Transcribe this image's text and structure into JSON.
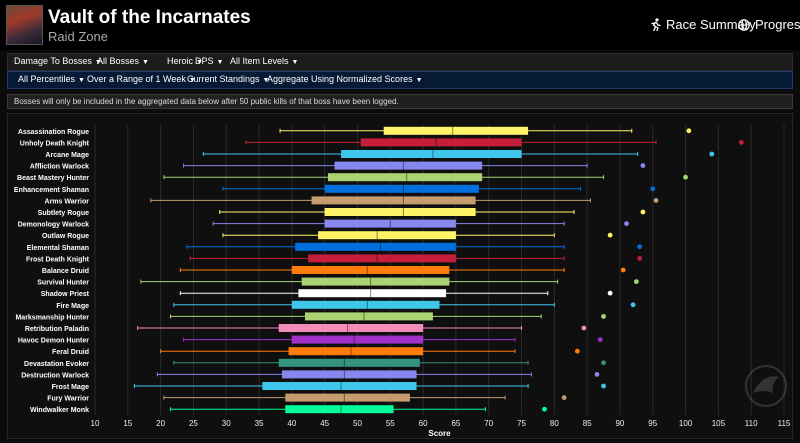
{
  "header": {
    "title": "Vault of the Incarnates",
    "subtitle": "Raid Zone",
    "links": [
      {
        "label": "Race Summary",
        "icon": "running-person-icon"
      },
      {
        "label": "Progress",
        "icon": "globe-icon"
      }
    ]
  },
  "menu1": [
    {
      "label": "Damage To Bosses"
    },
    {
      "label": "All Bosses"
    },
    {
      "label": "Heroic"
    },
    {
      "label": "DPS"
    },
    {
      "label": "All Item Levels"
    }
  ],
  "menu2": [
    {
      "label": "All Percentiles"
    },
    {
      "label": "Over a Range of 1 Week"
    },
    {
      "label": "Current Standings"
    },
    {
      "label": "Aggregate Using Normalized Scores"
    }
  ],
  "notice": "Bosses will only be included in the aggregated data below after 50 public kills of that boss have been logged.",
  "chart_data": {
    "type": "boxplot",
    "xlabel": "Score",
    "xlim": [
      10,
      115
    ],
    "xticks": [
      10,
      15,
      20,
      25,
      30,
      35,
      40,
      45,
      50,
      55,
      60,
      65,
      70,
      75,
      80,
      85,
      90,
      95,
      100,
      105,
      110,
      115
    ],
    "grid": true,
    "items": [
      {
        "name": "Assassination Rogue",
        "color": "#fff468",
        "min": 38.2,
        "q1": 54.0,
        "median": 64.5,
        "q3": 76.0,
        "max": 91.8,
        "outlier": 100.5
      },
      {
        "name": "Unholy Death Knight",
        "color": "#c41e3a",
        "min": 33.0,
        "q1": 50.5,
        "median": 62.0,
        "q3": 75.0,
        "max": 95.5,
        "outlier": 108.5
      },
      {
        "name": "Arcane Mage",
        "color": "#3fc7eb",
        "min": 26.5,
        "q1": 47.5,
        "median": 61.5,
        "q3": 75.0,
        "max": 92.7,
        "outlier": 104.0
      },
      {
        "name": "Affliction Warlock",
        "color": "#8788ee",
        "min": 23.5,
        "q1": 46.5,
        "median": 57.0,
        "q3": 69.0,
        "max": 85.0,
        "outlier": 93.5
      },
      {
        "name": "Beast Mastery Hunter",
        "color": "#aad372",
        "min": 20.5,
        "q1": 45.5,
        "median": 57.5,
        "q3": 69.0,
        "max": 87.5,
        "outlier": 100.0
      },
      {
        "name": "Enhancement Shaman",
        "color": "#0070dd",
        "min": 29.5,
        "q1": 45.0,
        "median": 57.0,
        "q3": 68.5,
        "max": 84.0,
        "outlier": 95.0
      },
      {
        "name": "Arms Warrior",
        "color": "#c69b6d",
        "min": 18.5,
        "q1": 43.0,
        "median": 57.0,
        "q3": 68.0,
        "max": 85.5,
        "outlier": 95.5
      },
      {
        "name": "Subtlety Rogue",
        "color": "#fff468",
        "min": 29.0,
        "q1": 45.0,
        "median": 57.0,
        "q3": 68.0,
        "max": 83.0,
        "outlier": 93.5
      },
      {
        "name": "Demonology Warlock",
        "color": "#8788ee",
        "min": 28.0,
        "q1": 45.0,
        "median": 55.0,
        "q3": 65.0,
        "max": 81.5,
        "outlier": 91.0
      },
      {
        "name": "Outlaw Rogue",
        "color": "#fff468",
        "min": 29.5,
        "q1": 44.0,
        "median": 53.0,
        "q3": 65.0,
        "max": 80.0,
        "outlier": 88.5
      },
      {
        "name": "Elemental Shaman",
        "color": "#0070dd",
        "min": 24.0,
        "q1": 40.5,
        "median": 53.5,
        "q3": 65.0,
        "max": 81.5,
        "outlier": 93.0
      },
      {
        "name": "Frost Death Knight",
        "color": "#c41e3a",
        "min": 24.5,
        "q1": 42.5,
        "median": 53.0,
        "q3": 65.0,
        "max": 81.5,
        "outlier": 93.0
      },
      {
        "name": "Balance Druid",
        "color": "#ff7c0a",
        "min": 23.0,
        "q1": 40.0,
        "median": 51.5,
        "q3": 64.0,
        "max": 81.5,
        "outlier": 90.5
      },
      {
        "name": "Survival Hunter",
        "color": "#aad372",
        "min": 17.0,
        "q1": 41.5,
        "median": 52.0,
        "q3": 64.0,
        "max": 80.5,
        "outlier": 92.5
      },
      {
        "name": "Shadow Priest",
        "color": "#ffffff",
        "min": 23.0,
        "q1": 41.0,
        "median": 52.0,
        "q3": 63.5,
        "max": 79.0,
        "outlier": 88.5
      },
      {
        "name": "Fire Mage",
        "color": "#3fc7eb",
        "min": 22.0,
        "q1": 40.0,
        "median": 51.5,
        "q3": 62.5,
        "max": 80.0,
        "outlier": 92.0
      },
      {
        "name": "Marksmanship Hunter",
        "color": "#aad372",
        "min": 21.5,
        "q1": 42.0,
        "median": 51.0,
        "q3": 61.5,
        "max": 78.0,
        "outlier": 87.5
      },
      {
        "name": "Retribution Paladin",
        "color": "#f48cba",
        "min": 16.5,
        "q1": 38.0,
        "median": 48.5,
        "q3": 60.0,
        "max": 75.0,
        "outlier": 84.5
      },
      {
        "name": "Havoc Demon Hunter",
        "color": "#a330c9",
        "min": 23.5,
        "q1": 40.0,
        "median": 49.5,
        "q3": 60.0,
        "max": 74.0,
        "outlier": 87.0
      },
      {
        "name": "Feral Druid",
        "color": "#ff7c0a",
        "min": 20.0,
        "q1": 39.5,
        "median": 49.0,
        "q3": 60.0,
        "max": 74.0,
        "outlier": 83.5
      },
      {
        "name": "Devastation Evoker",
        "color": "#33937f",
        "min": 22.0,
        "q1": 38.0,
        "median": 48.0,
        "q3": 59.5,
        "max": 76.0,
        "outlier": 87.5
      },
      {
        "name": "Destruction Warlock",
        "color": "#8788ee",
        "min": 19.5,
        "q1": 38.5,
        "median": 48.0,
        "q3": 59.0,
        "max": 76.5,
        "outlier": 86.5
      },
      {
        "name": "Frost Mage",
        "color": "#3fc7eb",
        "min": 16.0,
        "q1": 35.5,
        "median": 47.5,
        "q3": 59.0,
        "max": 76.0,
        "outlier": 87.5
      },
      {
        "name": "Fury Warrior",
        "color": "#c69b6d",
        "min": 20.5,
        "q1": 39.0,
        "median": 48.0,
        "q3": 58.0,
        "max": 72.5,
        "outlier": 81.5
      },
      {
        "name": "Windwalker Monk",
        "color": "#00ff98",
        "min": 21.5,
        "q1": 39.0,
        "median": 47.5,
        "q3": 55.5,
        "max": 69.5,
        "outlier": 78.5
      }
    ]
  }
}
